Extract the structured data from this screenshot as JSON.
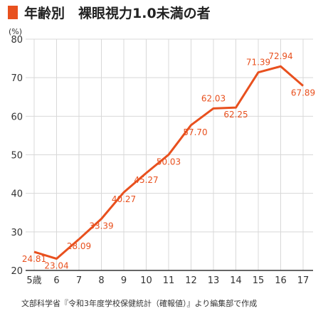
{
  "colors": {
    "accent": "#e8501e",
    "grid": "#d8d8d8",
    "axis": "#333333",
    "text": "#222222"
  },
  "chart_data": {
    "type": "line",
    "title": "年齢別　裸眼視力1.0未満の者",
    "ylabel": "(%)",
    "xlabel": "",
    "x_tick_labels": [
      "5歳",
      "6",
      "7",
      "8",
      "9",
      "10",
      "11",
      "12",
      "13",
      "14",
      "15",
      "16",
      "17"
    ],
    "ylim": [
      20,
      80
    ],
    "yticks": [
      20,
      30,
      40,
      50,
      60,
      70,
      80
    ],
    "y_tick_labels": [
      "20",
      "30",
      "40",
      "50",
      "60",
      "70",
      "80"
    ],
    "grid": true,
    "legend": "none",
    "series": [
      {
        "values": [
          24.81,
          23.04,
          28.09,
          33.39,
          40.27,
          45.27,
          50.03,
          57.7,
          62.03,
          62.25,
          71.39,
          72.94,
          67.89
        ],
        "labels": [
          "24.81",
          "23.04",
          "28.09",
          "33.39",
          "40.27",
          "45.27",
          "50.03",
          "57.70",
          "62.03",
          "62.25",
          "71.39",
          "72.94",
          "67.89"
        ]
      }
    ],
    "source": "文部科学省『令和3年度学校保健統計（確報値）』より編集部で作成"
  }
}
